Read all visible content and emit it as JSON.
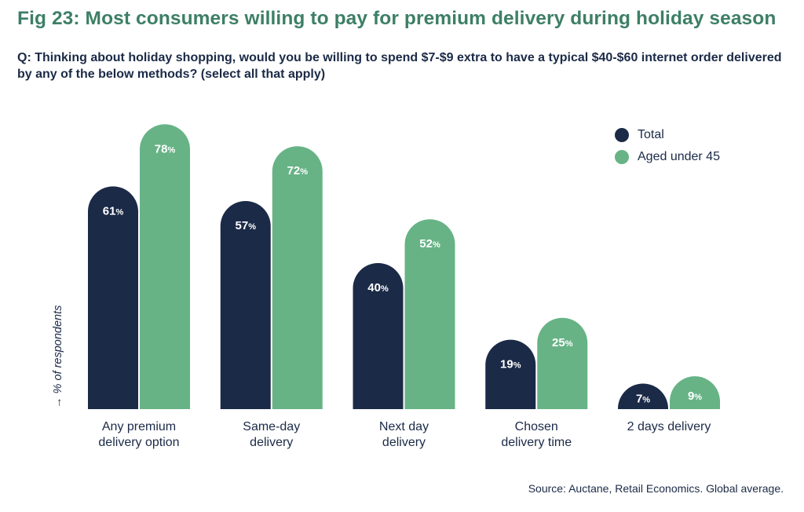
{
  "title": "Fig 23: Most consumers willing to pay for premium delivery during holiday season",
  "question": "Q: Thinking about holiday shopping, would you be willing to spend $7-$9 extra to have a typical $40-$60 internet order delivered by any of the below methods? (select all that apply)",
  "source": "Source: Auctane, Retail Economics. Global average.",
  "colors": {
    "title": "#3d7f66",
    "total": "#1b2a47",
    "under45": "#67b386",
    "text": "#1b2a47"
  },
  "chart_data": {
    "type": "bar",
    "categories": [
      [
        "Any premium",
        "delivery option"
      ],
      [
        "Same-day",
        "delivery"
      ],
      [
        "Next day",
        "delivery"
      ],
      [
        "Chosen",
        "delivery time"
      ],
      [
        "2 days delivery"
      ]
    ],
    "series": [
      {
        "name": "Total",
        "color": "#1b2a47",
        "values": [
          61,
          57,
          40,
          19,
          7
        ]
      },
      {
        "name": "Aged under 45",
        "color": "#67b386",
        "values": [
          78,
          72,
          52,
          25,
          9
        ]
      }
    ],
    "ylabel": "→ % of respondents",
    "value_suffix": "%",
    "ylim": [
      0,
      80
    ],
    "grid": false,
    "legend_position": "top-right"
  }
}
